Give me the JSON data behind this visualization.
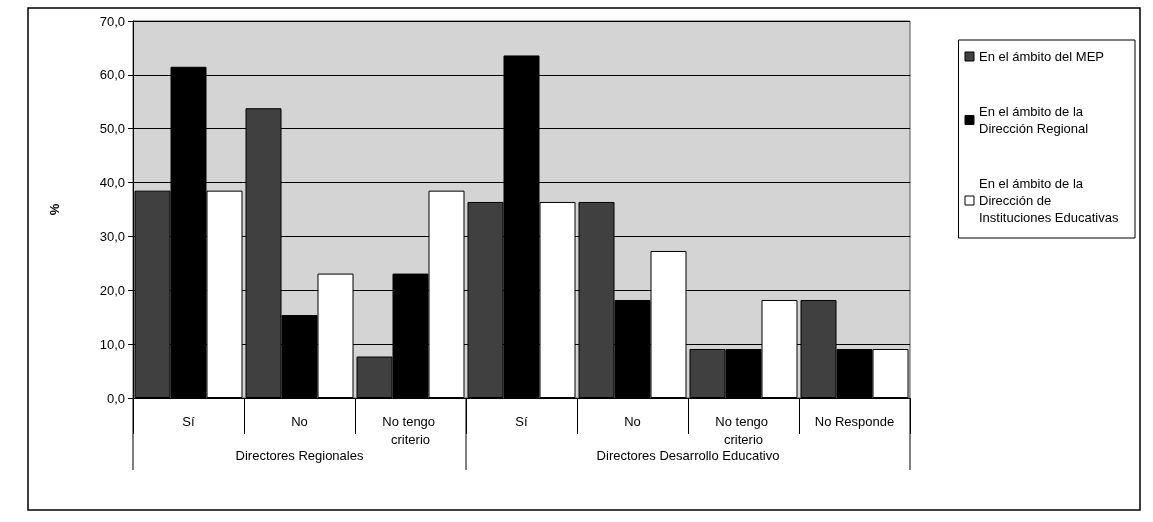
{
  "chart_data": {
    "type": "bar",
    "ylabel": "%",
    "categories": [
      "Sí",
      "No",
      "No tengo criterio",
      "Sí",
      "No",
      "No tengo criterio",
      "No Responde"
    ],
    "annotations": [
      "Directores Regionales",
      "Directores Desarrollo Educativo"
    ],
    "series": [
      {
        "name": "En el ámbito del MEP",
        "color": "#404040",
        "values": [
          38.5,
          53.8,
          7.7,
          36.4,
          36.4,
          9.1,
          18.2
        ]
      },
      {
        "name": "En el ámbito de la Dirección Regional",
        "color": "#000000",
        "values": [
          61.5,
          15.4,
          23.1,
          63.6,
          18.2,
          9.1,
          9.1
        ]
      },
      {
        "name": "En el ámbito de la Dirección de Instituciones Educativas",
        "color": "#ffffff",
        "values": [
          38.5,
          23.1,
          38.5,
          36.4,
          27.3,
          18.2,
          9.1
        ]
      }
    ],
    "ylim": [
      0,
      70
    ],
    "yticks": [
      {
        "value": 0,
        "label": "0,0"
      },
      {
        "value": 10,
        "label": "10,0"
      },
      {
        "value": 20,
        "label": "20,0"
      },
      {
        "value": 30,
        "label": "30,0"
      },
      {
        "value": 40,
        "label": "40,0"
      },
      {
        "value": 50,
        "label": "50,0"
      },
      {
        "value": 60,
        "label": "60,0"
      },
      {
        "value": 70,
        "label": "70,0"
      }
    ],
    "grid": "y",
    "legend": "right"
  }
}
